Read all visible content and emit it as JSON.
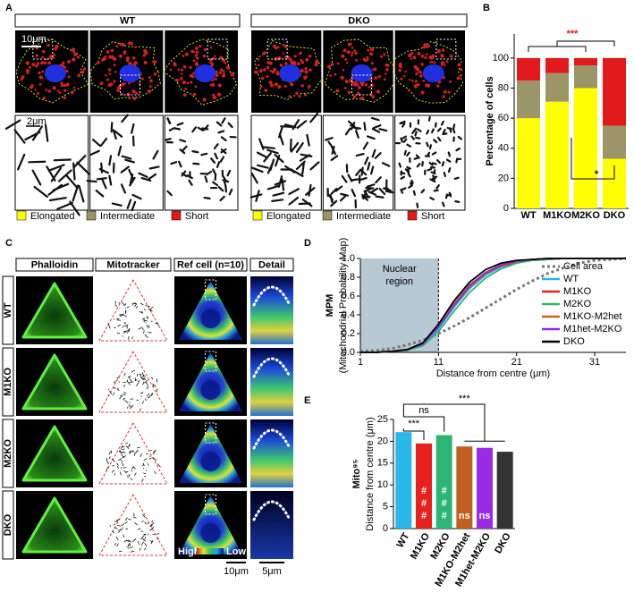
{
  "panel_labels": [
    "A",
    "B",
    "C",
    "D",
    "E"
  ],
  "panel_a": {
    "groups": [
      "WT",
      "DKO"
    ],
    "scale_bars": [
      "10μm",
      "2μm"
    ],
    "legend": [
      {
        "label": "Elongated",
        "color": "#ffff00"
      },
      {
        "label": "Intermediate",
        "color": "#9b9568"
      },
      {
        "label": "Short",
        "color": "#e31a1c"
      }
    ]
  },
  "panel_c": {
    "columns": [
      "Phalloidin",
      "Mitotracker",
      "Ref cell (n=10)",
      "Detail"
    ],
    "rows": [
      "WT",
      "M1KO",
      "M2KO",
      "DKO"
    ],
    "colorbar": [
      "High",
      "Low"
    ],
    "scale_bars": [
      "10μm",
      "5μm"
    ]
  },
  "chart_data": [
    {
      "type": "stacked_bar",
      "ylabel": "Percentage of cells",
      "categories": [
        "WT",
        "M1KO",
        "M2KO",
        "DKO"
      ],
      "series": [
        {
          "name": "Elongated",
          "color": "#ffff00",
          "values": [
            60,
            71,
            80,
            33
          ]
        },
        {
          "name": "Intermediate",
          "color": "#9b9568",
          "values": [
            25,
            19,
            15,
            22
          ]
        },
        {
          "name": "Short",
          "color": "#e31a1c",
          "values": [
            15,
            10,
            5,
            45
          ]
        }
      ],
      "ylim": [
        0,
        116
      ],
      "yticks": [
        0,
        20,
        40,
        60,
        80,
        100
      ],
      "annotations": [
        {
          "label": "***",
          "color": "#e31a1c"
        },
        {
          "label": "*",
          "color": "#000000"
        }
      ]
    },
    {
      "type": "line",
      "ylabel": [
        "MPM",
        "(Mitochondrial Probability Map)"
      ],
      "xlabel": "Distance from centre (μm)",
      "nuclear_region": {
        "label": [
          "Nuclear",
          "region"
        ],
        "xlim": [
          1,
          11
        ],
        "color": "#b7c9d3"
      },
      "x": [
        1,
        3,
        5,
        7,
        9,
        11,
        13,
        15,
        17,
        19,
        21,
        23,
        25,
        27,
        29,
        31,
        33,
        35
      ],
      "series": [
        {
          "name": "Cell area",
          "color": "#777777",
          "dashed": true,
          "values": [
            0.01,
            0.02,
            0.04,
            0.08,
            0.13,
            0.2,
            0.28,
            0.37,
            0.47,
            0.57,
            0.67,
            0.76,
            0.84,
            0.9,
            0.95,
            0.98,
            0.99,
            1
          ]
        },
        {
          "name": "WT",
          "color": "#29b6e8",
          "values": [
            0,
            0,
            0.01,
            0.03,
            0.08,
            0.25,
            0.48,
            0.68,
            0.82,
            0.91,
            0.96,
            0.98,
            0.99,
            1,
            1,
            1,
            1,
            1
          ]
        },
        {
          "name": "M1KO",
          "color": "#e8211e",
          "values": [
            0,
            0,
            0.01,
            0.03,
            0.09,
            0.27,
            0.5,
            0.7,
            0.84,
            0.92,
            0.96,
            0.98,
            0.99,
            1,
            1,
            1,
            1,
            1
          ]
        },
        {
          "name": "M2KO",
          "color": "#2bb673",
          "values": [
            0,
            0,
            0.01,
            0.02,
            0.07,
            0.22,
            0.44,
            0.64,
            0.79,
            0.89,
            0.95,
            0.98,
            0.99,
            1,
            1,
            1,
            1,
            1
          ]
        },
        {
          "name": "M1KO-M2het",
          "color": "#c8641e",
          "values": [
            0,
            0,
            0.01,
            0.03,
            0.09,
            0.28,
            0.52,
            0.72,
            0.85,
            0.93,
            0.97,
            0.99,
            1,
            1,
            1,
            1,
            1,
            1
          ]
        },
        {
          "name": "M1het-M2KO",
          "color": "#8b2fd9",
          "values": [
            0,
            0,
            0.01,
            0.03,
            0.09,
            0.27,
            0.5,
            0.71,
            0.85,
            0.93,
            0.97,
            0.99,
            1,
            1,
            1,
            1,
            1,
            1
          ]
        },
        {
          "name": "DKO",
          "color": "#000000",
          "values": [
            0,
            0,
            0.01,
            0.03,
            0.1,
            0.3,
            0.55,
            0.75,
            0.88,
            0.95,
            0.98,
            0.99,
            1,
            1,
            1,
            1,
            1,
            1
          ]
        }
      ],
      "xlim": [
        1,
        35
      ],
      "xticks": [
        1,
        11,
        21,
        31
      ],
      "ylim": [
        0,
        1
      ],
      "yticks": [
        {
          "value": 0,
          "label": "0.0"
        },
        0.2,
        0.4,
        0.6,
        0.8,
        {
          "value": 1,
          "label": "1.0"
        }
      ]
    },
    {
      "type": "bar",
      "ylabel": [
        "Mito⁹⁵",
        "Distance from centre (μm)"
      ],
      "categories": [
        "WT",
        "M1KO",
        "M2KO",
        "M1KO-M2het",
        "M1het-M2KO",
        "DKO"
      ],
      "values": [
        22.1,
        19.5,
        21.4,
        18.8,
        18.5,
        17.6
      ],
      "colors": [
        "#29b6e8",
        "#e8211e",
        "#2bb673",
        "#c0601e",
        "#9a2be2",
        "#333333"
      ],
      "inner_labels": [
        null,
        [
          "#",
          "#",
          "#"
        ],
        [
          "#",
          "#",
          "#"
        ],
        [
          "ns"
        ],
        [
          "ns"
        ],
        null
      ],
      "annotations": [
        "***",
        "ns",
        "***"
      ],
      "ylim": [
        0,
        25
      ],
      "yticks": [
        0,
        5,
        10,
        15,
        20,
        25
      ]
    }
  ]
}
